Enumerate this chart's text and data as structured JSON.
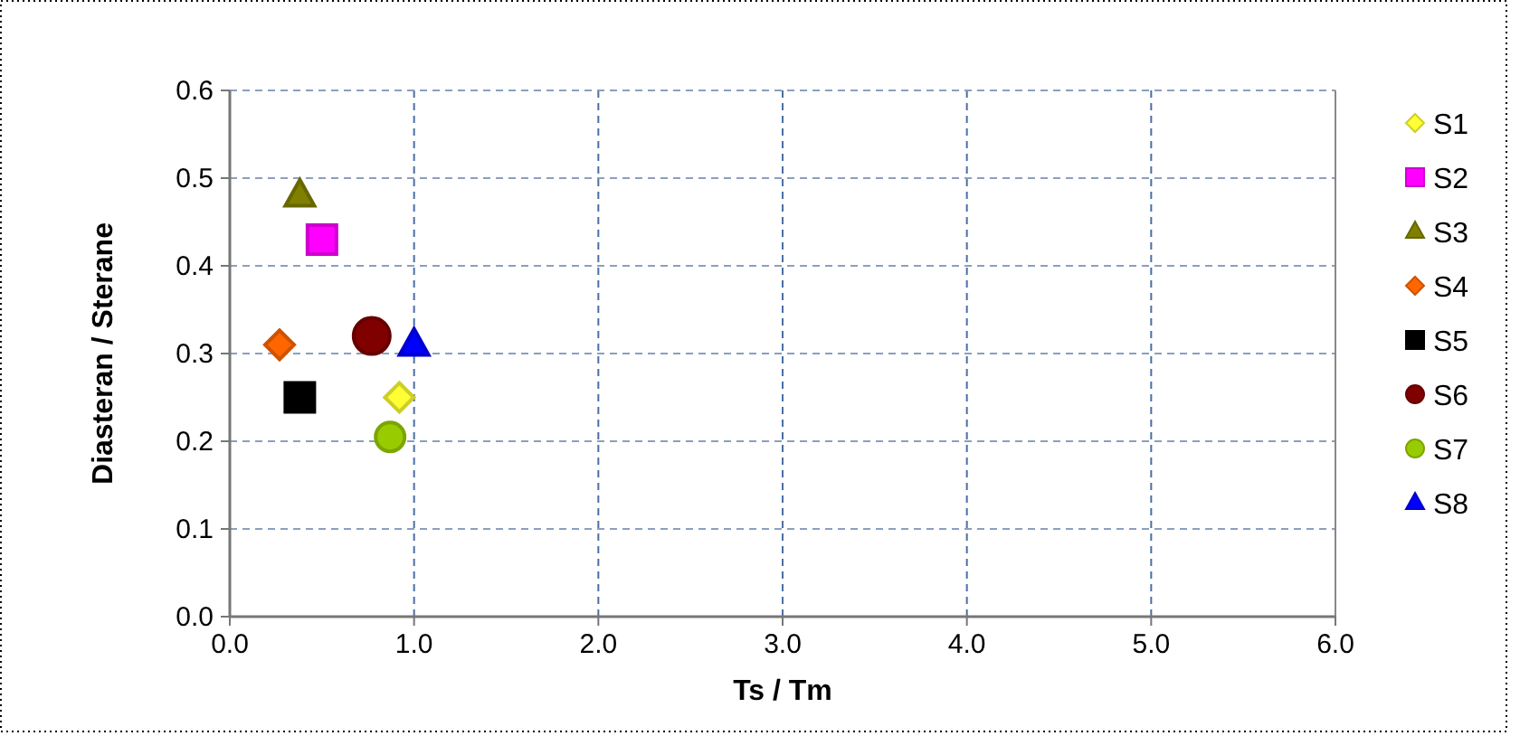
{
  "chart_data": {
    "type": "scatter",
    "xlabel": "Ts / Tm",
    "ylabel": "Diasteran / Sterane",
    "xlim": [
      0,
      6
    ],
    "xticks": [
      {
        "value": 0,
        "label": "0.0"
      },
      {
        "value": 1,
        "label": "1.0"
      },
      {
        "value": 2,
        "label": "2.0"
      },
      {
        "value": 3,
        "label": "3.0"
      },
      {
        "value": 4,
        "label": "4.0"
      },
      {
        "value": 5,
        "label": "5.0"
      },
      {
        "value": 6,
        "label": "6.0"
      }
    ],
    "ylim": [
      0,
      0.6
    ],
    "yticks": [
      {
        "value": 0,
        "label": "0.0"
      },
      {
        "value": 0.1,
        "label": "0.1"
      },
      {
        "value": 0.2,
        "label": "0.2"
      },
      {
        "value": 0.3,
        "label": "0.3"
      },
      {
        "value": 0.4,
        "label": "0.4"
      },
      {
        "value": 0.5,
        "label": "0.5"
      },
      {
        "value": 0.6,
        "label": "0.6"
      }
    ],
    "grid": true,
    "line_style": "dashed",
    "legend": "right",
    "series": [
      {
        "name": "S1",
        "color": "#ffff33",
        "marker": "diamond",
        "x": [
          0.92
        ],
        "values": [
          0.25
        ]
      },
      {
        "name": "S2",
        "color": "#ff00ff",
        "marker": "square",
        "x": [
          0.5
        ],
        "values": [
          0.43
        ]
      },
      {
        "name": "S3",
        "color": "#808000",
        "marker": "triangle",
        "x": [
          0.38
        ],
        "values": [
          0.48
        ]
      },
      {
        "name": "S4",
        "color": "#ff6600",
        "marker": "diamond",
        "x": [
          0.27
        ],
        "values": [
          0.31
        ]
      },
      {
        "name": "S5",
        "color": "#000000",
        "marker": "square",
        "x": [
          0.38
        ],
        "values": [
          0.25
        ]
      },
      {
        "name": "S6",
        "color": "#800000",
        "marker": "circle",
        "x": [
          0.77
        ],
        "values": [
          0.32
        ]
      },
      {
        "name": "S7",
        "color": "#99cc00",
        "marker": "circle",
        "x": [
          0.87
        ],
        "values": [
          0.205
        ]
      },
      {
        "name": "S8",
        "color": "#0000ff",
        "marker": "triangle",
        "x": [
          1.0
        ],
        "values": [
          0.31
        ]
      }
    ]
  }
}
